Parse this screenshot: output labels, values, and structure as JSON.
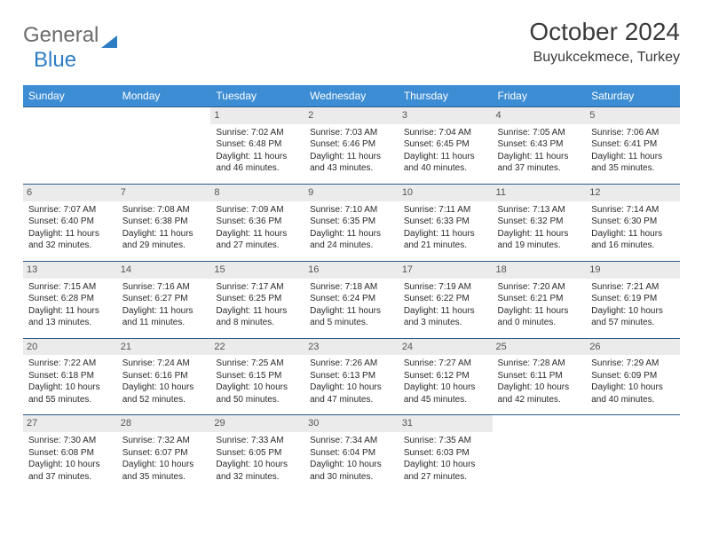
{
  "brand": {
    "word1": "General",
    "word2": "Blue"
  },
  "title": {
    "month": "October 2024",
    "location": "Buyukcekmece, Turkey"
  },
  "colors": {
    "header_bg": "#3d8dd4",
    "header_text": "#ffffff",
    "cell_border": "#2a5a8a",
    "daynum_bg": "#ebebeb",
    "logo_gray": "#6b6b6b",
    "logo_blue": "#2d7dc4"
  },
  "day_names": [
    "Sunday",
    "Monday",
    "Tuesday",
    "Wednesday",
    "Thursday",
    "Friday",
    "Saturday"
  ],
  "weeks": [
    [
      null,
      null,
      {
        "n": "1",
        "sr": "Sunrise: 7:02 AM",
        "ss": "Sunset: 6:48 PM",
        "d1": "Daylight: 11 hours",
        "d2": "and 46 minutes."
      },
      {
        "n": "2",
        "sr": "Sunrise: 7:03 AM",
        "ss": "Sunset: 6:46 PM",
        "d1": "Daylight: 11 hours",
        "d2": "and 43 minutes."
      },
      {
        "n": "3",
        "sr": "Sunrise: 7:04 AM",
        "ss": "Sunset: 6:45 PM",
        "d1": "Daylight: 11 hours",
        "d2": "and 40 minutes."
      },
      {
        "n": "4",
        "sr": "Sunrise: 7:05 AM",
        "ss": "Sunset: 6:43 PM",
        "d1": "Daylight: 11 hours",
        "d2": "and 37 minutes."
      },
      {
        "n": "5",
        "sr": "Sunrise: 7:06 AM",
        "ss": "Sunset: 6:41 PM",
        "d1": "Daylight: 11 hours",
        "d2": "and 35 minutes."
      }
    ],
    [
      {
        "n": "6",
        "sr": "Sunrise: 7:07 AM",
        "ss": "Sunset: 6:40 PM",
        "d1": "Daylight: 11 hours",
        "d2": "and 32 minutes."
      },
      {
        "n": "7",
        "sr": "Sunrise: 7:08 AM",
        "ss": "Sunset: 6:38 PM",
        "d1": "Daylight: 11 hours",
        "d2": "and 29 minutes."
      },
      {
        "n": "8",
        "sr": "Sunrise: 7:09 AM",
        "ss": "Sunset: 6:36 PM",
        "d1": "Daylight: 11 hours",
        "d2": "and 27 minutes."
      },
      {
        "n": "9",
        "sr": "Sunrise: 7:10 AM",
        "ss": "Sunset: 6:35 PM",
        "d1": "Daylight: 11 hours",
        "d2": "and 24 minutes."
      },
      {
        "n": "10",
        "sr": "Sunrise: 7:11 AM",
        "ss": "Sunset: 6:33 PM",
        "d1": "Daylight: 11 hours",
        "d2": "and 21 minutes."
      },
      {
        "n": "11",
        "sr": "Sunrise: 7:13 AM",
        "ss": "Sunset: 6:32 PM",
        "d1": "Daylight: 11 hours",
        "d2": "and 19 minutes."
      },
      {
        "n": "12",
        "sr": "Sunrise: 7:14 AM",
        "ss": "Sunset: 6:30 PM",
        "d1": "Daylight: 11 hours",
        "d2": "and 16 minutes."
      }
    ],
    [
      {
        "n": "13",
        "sr": "Sunrise: 7:15 AM",
        "ss": "Sunset: 6:28 PM",
        "d1": "Daylight: 11 hours",
        "d2": "and 13 minutes."
      },
      {
        "n": "14",
        "sr": "Sunrise: 7:16 AM",
        "ss": "Sunset: 6:27 PM",
        "d1": "Daylight: 11 hours",
        "d2": "and 11 minutes."
      },
      {
        "n": "15",
        "sr": "Sunrise: 7:17 AM",
        "ss": "Sunset: 6:25 PM",
        "d1": "Daylight: 11 hours",
        "d2": "and 8 minutes."
      },
      {
        "n": "16",
        "sr": "Sunrise: 7:18 AM",
        "ss": "Sunset: 6:24 PM",
        "d1": "Daylight: 11 hours",
        "d2": "and 5 minutes."
      },
      {
        "n": "17",
        "sr": "Sunrise: 7:19 AM",
        "ss": "Sunset: 6:22 PM",
        "d1": "Daylight: 11 hours",
        "d2": "and 3 minutes."
      },
      {
        "n": "18",
        "sr": "Sunrise: 7:20 AM",
        "ss": "Sunset: 6:21 PM",
        "d1": "Daylight: 11 hours",
        "d2": "and 0 minutes."
      },
      {
        "n": "19",
        "sr": "Sunrise: 7:21 AM",
        "ss": "Sunset: 6:19 PM",
        "d1": "Daylight: 10 hours",
        "d2": "and 57 minutes."
      }
    ],
    [
      {
        "n": "20",
        "sr": "Sunrise: 7:22 AM",
        "ss": "Sunset: 6:18 PM",
        "d1": "Daylight: 10 hours",
        "d2": "and 55 minutes."
      },
      {
        "n": "21",
        "sr": "Sunrise: 7:24 AM",
        "ss": "Sunset: 6:16 PM",
        "d1": "Daylight: 10 hours",
        "d2": "and 52 minutes."
      },
      {
        "n": "22",
        "sr": "Sunrise: 7:25 AM",
        "ss": "Sunset: 6:15 PM",
        "d1": "Daylight: 10 hours",
        "d2": "and 50 minutes."
      },
      {
        "n": "23",
        "sr": "Sunrise: 7:26 AM",
        "ss": "Sunset: 6:13 PM",
        "d1": "Daylight: 10 hours",
        "d2": "and 47 minutes."
      },
      {
        "n": "24",
        "sr": "Sunrise: 7:27 AM",
        "ss": "Sunset: 6:12 PM",
        "d1": "Daylight: 10 hours",
        "d2": "and 45 minutes."
      },
      {
        "n": "25",
        "sr": "Sunrise: 7:28 AM",
        "ss": "Sunset: 6:11 PM",
        "d1": "Daylight: 10 hours",
        "d2": "and 42 minutes."
      },
      {
        "n": "26",
        "sr": "Sunrise: 7:29 AM",
        "ss": "Sunset: 6:09 PM",
        "d1": "Daylight: 10 hours",
        "d2": "and 40 minutes."
      }
    ],
    [
      {
        "n": "27",
        "sr": "Sunrise: 7:30 AM",
        "ss": "Sunset: 6:08 PM",
        "d1": "Daylight: 10 hours",
        "d2": "and 37 minutes."
      },
      {
        "n": "28",
        "sr": "Sunrise: 7:32 AM",
        "ss": "Sunset: 6:07 PM",
        "d1": "Daylight: 10 hours",
        "d2": "and 35 minutes."
      },
      {
        "n": "29",
        "sr": "Sunrise: 7:33 AM",
        "ss": "Sunset: 6:05 PM",
        "d1": "Daylight: 10 hours",
        "d2": "and 32 minutes."
      },
      {
        "n": "30",
        "sr": "Sunrise: 7:34 AM",
        "ss": "Sunset: 6:04 PM",
        "d1": "Daylight: 10 hours",
        "d2": "and 30 minutes."
      },
      {
        "n": "31",
        "sr": "Sunrise: 7:35 AM",
        "ss": "Sunset: 6:03 PM",
        "d1": "Daylight: 10 hours",
        "d2": "and 27 minutes."
      },
      null,
      null
    ]
  ]
}
